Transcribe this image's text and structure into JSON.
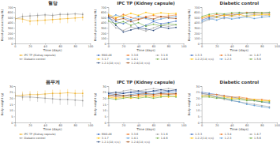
{
  "chart_data": [
    {
      "type": "line",
      "title": "혈당",
      "x_label": "Time (days)",
      "y_label": "Blood glucose (mg/dL)",
      "x": [
        0,
        10,
        20,
        30,
        40,
        50,
        60,
        70,
        80,
        90
      ],
      "xlim": [
        0,
        100
      ],
      "xticks": [
        0,
        20,
        40,
        60,
        80,
        100
      ],
      "ylim": [
        0,
        700
      ],
      "yticks": [
        0,
        100,
        200,
        300,
        400,
        500,
        600,
        700
      ],
      "grid": false,
      "legend": "bottom",
      "marker": "circle",
      "line_style": "solid",
      "series": [
        {
          "name": "IPC TP (Kidney capsule)",
          "color": "#f2b632",
          "values": [
            480,
            470,
            430,
            440,
            450,
            460,
            470,
            480,
            490,
            500
          ],
          "errors": [
            60,
            70,
            80,
            90,
            80,
            70,
            80,
            90,
            70,
            60
          ]
        },
        {
          "name": "Diabetic control",
          "color": "#9a9a9a",
          "values": [
            470,
            520,
            530,
            540,
            550,
            540,
            560,
            560,
            570,
            560
          ],
          "errors": [
            50,
            60,
            60,
            50,
            40,
            50,
            40,
            40,
            30,
            40
          ]
        }
      ]
    },
    {
      "type": "line",
      "title": "IPC TP (Kidney capsule)",
      "x_label": "Time (days)",
      "y_label": "Blood glucose (mg/dL)",
      "x": [
        0,
        10,
        20,
        30,
        40,
        50,
        60,
        70,
        80,
        90
      ],
      "xlim": [
        0,
        100
      ],
      "xticks": [
        0,
        20,
        40,
        60,
        80,
        100
      ],
      "ylim": [
        0,
        700
      ],
      "yticks": [
        0,
        100,
        200,
        300,
        400,
        500,
        600,
        700
      ],
      "grid": false,
      "legend": "bottom",
      "marker": "circle",
      "line_style": "solid",
      "series": [
        {
          "name": "M80-A6",
          "color": "#4472c4",
          "values": [
            500,
            420,
            380,
            450,
            300,
            350,
            420,
            380,
            400,
            430
          ]
        },
        {
          "name": "3-3-6",
          "color": "#ed7d31",
          "values": [
            520,
            480,
            560,
            500,
            470,
            520,
            540,
            510,
            530,
            550
          ]
        },
        {
          "name": "3-1-6",
          "color": "#a5a5a5",
          "values": [
            450,
            300,
            250,
            320,
            280,
            240,
            300,
            350,
            330,
            360
          ]
        },
        {
          "name": "3-1-7",
          "color": "#ffc000",
          "values": [
            560,
            500,
            530,
            580,
            540,
            600,
            560,
            590,
            570,
            580
          ]
        },
        {
          "name": "1-4-1",
          "color": "#5b9bd5",
          "values": [
            480,
            550,
            500,
            460,
            520,
            480,
            440,
            470,
            500,
            520
          ]
        },
        {
          "name": "1-4-6",
          "color": "#70ad47",
          "values": [
            430,
            380,
            420,
            350,
            400,
            330,
            370,
            340,
            380,
            360
          ]
        },
        {
          "name": "1-2-1(1차 이식)",
          "color": "#264478",
          "values": [
            510,
            350,
            220,
            260,
            300,
            280,
            250,
            320,
            290,
            310
          ]
        },
        {
          "name": "1-2-4(1차 이식)",
          "color": "#9e480e",
          "values": [
            540,
            450,
            480,
            420,
            460,
            500,
            470,
            520,
            490,
            480
          ]
        }
      ]
    },
    {
      "type": "line",
      "title": "Diabetic control",
      "x_label": "Time (days)",
      "y_label": "Blood glucose (mg/dL)",
      "x": [
        0,
        10,
        20,
        30,
        40,
        50,
        60,
        70,
        80,
        90
      ],
      "xlim": [
        0,
        100
      ],
      "xticks": [
        0,
        20,
        40,
        60,
        80,
        100
      ],
      "ylim": [
        0,
        700
      ],
      "yticks": [
        0,
        100,
        200,
        300,
        400,
        500,
        600,
        700
      ],
      "grid": false,
      "legend": "bottom",
      "marker": "circle",
      "line_style": "solid",
      "series": [
        {
          "name": "1-3-3",
          "color": "#4472c4",
          "values": [
            450,
            500,
            520,
            560,
            540,
            580,
            590,
            600,
            580,
            600
          ]
        },
        {
          "name": "1-3-4",
          "color": "#ed7d31",
          "values": [
            480,
            520,
            560,
            530,
            570,
            550,
            600,
            580,
            590,
            570
          ]
        },
        {
          "name": "1-4-7",
          "color": "#a5a5a5",
          "values": [
            400,
            460,
            500,
            480,
            520,
            500,
            540,
            560,
            530,
            550
          ]
        },
        {
          "name": "1-2-2(1차 이식)",
          "color": "#ffc000",
          "values": [
            500,
            540,
            510,
            550,
            530,
            560,
            520,
            540,
            560,
            550
          ]
        },
        {
          "name": "1-2-3",
          "color": "#5b9bd5",
          "values": [
            420,
            480,
            450,
            500,
            470,
            490,
            510,
            480,
            500,
            520
          ]
        },
        {
          "name": "1-5-6",
          "color": "#70ad47",
          "values": [
            520,
            560,
            580,
            570,
            590,
            600,
            580,
            600,
            590,
            600
          ]
        }
      ]
    },
    {
      "type": "line",
      "title": "몸무게",
      "x_label": "Time (days)",
      "y_label": "Body weight (g)",
      "x": [
        0,
        10,
        20,
        30,
        40,
        50,
        60,
        70,
        80,
        90
      ],
      "xlim": [
        0,
        100
      ],
      "xticks": [
        0,
        20,
        40,
        60,
        80,
        100
      ],
      "ylim": [
        0,
        30
      ],
      "yticks": [
        0,
        5,
        10,
        15,
        20,
        25,
        30
      ],
      "grid": false,
      "legend": "bottom",
      "marker": "circle",
      "line_style": "solid",
      "series": [
        {
          "name": "IPC TP (Kidney capsule)",
          "color": "#f2b632",
          "values": [
            22,
            22.5,
            23,
            23,
            23.5,
            24,
            24,
            24.5,
            24,
            24
          ],
          "errors": [
            3,
            3,
            3,
            3,
            3,
            3,
            3,
            3,
            3,
            3
          ]
        },
        {
          "name": "Diabetic control",
          "color": "#9a9a9a",
          "values": [
            22,
            21,
            21,
            20.5,
            20,
            19.5,
            19,
            19,
            18.5,
            18
          ],
          "errors": [
            3,
            3,
            3.5,
            3.5,
            4,
            4,
            4.5,
            4.5,
            5,
            5
          ]
        }
      ]
    },
    {
      "type": "line",
      "title": "IPC TP (Kidney capsule)",
      "x_label": "Time (days)",
      "y_label": "Body weight (g)",
      "x": [
        0,
        10,
        20,
        30,
        40,
        50,
        60,
        70,
        80,
        90
      ],
      "xlim": [
        0,
        100
      ],
      "xticks": [
        0,
        20,
        40,
        60,
        80,
        100
      ],
      "ylim": [
        0,
        30
      ],
      "yticks": [
        0,
        5,
        10,
        15,
        20,
        25,
        30
      ],
      "grid": false,
      "legend": "bottom",
      "marker": "circle",
      "line_style": "solid",
      "series": [
        {
          "name": "M80-A6",
          "color": "#4472c4",
          "values": [
            24,
            23,
            24,
            25,
            24,
            25,
            26,
            25,
            26,
            26
          ]
        },
        {
          "name": "3-3-6",
          "color": "#ed7d31",
          "values": [
            22,
            21,
            22,
            23,
            22,
            23,
            22,
            23,
            24,
            23
          ]
        },
        {
          "name": "3-1-6",
          "color": "#a5a5a5",
          "values": [
            25,
            24,
            26,
            27,
            26,
            27,
            28,
            27,
            28,
            27
          ]
        },
        {
          "name": "3-1-7",
          "color": "#ffc000",
          "values": [
            21,
            20,
            21,
            20,
            21,
            22,
            21,
            22,
            21,
            22
          ]
        },
        {
          "name": "1-4-1",
          "color": "#5b9bd5",
          "values": [
            23,
            22,
            22,
            23,
            24,
            23,
            24,
            24,
            25,
            24
          ]
        },
        {
          "name": "1-4-6",
          "color": "#70ad47",
          "values": [
            20,
            19,
            20,
            21,
            20,
            21,
            20,
            21,
            22,
            21
          ]
        },
        {
          "name": "1-2-1(1차 이식)",
          "color": "#264478",
          "values": [
            24,
            25,
            24,
            25,
            26,
            25,
            26,
            27,
            26,
            27
          ]
        },
        {
          "name": "1-2-4(1차 이식)",
          "color": "#9e480e",
          "values": [
            22,
            23,
            22,
            22,
            23,
            24,
            23,
            24,
            23,
            24
          ]
        }
      ]
    },
    {
      "type": "line",
      "title": "Diabetic control",
      "x_label": "Time (days)",
      "y_label": "Body weight (g)",
      "x": [
        0,
        10,
        20,
        30,
        40,
        50,
        60,
        70,
        80,
        90
      ],
      "xlim": [
        0,
        100
      ],
      "xticks": [
        0,
        20,
        40,
        60,
        80,
        100
      ],
      "ylim": [
        0,
        30
      ],
      "yticks": [
        0,
        5,
        10,
        15,
        20,
        25,
        30
      ],
      "grid": false,
      "legend": "bottom",
      "marker": "circle",
      "line_style": "solid",
      "series": [
        {
          "name": "1-3-3",
          "color": "#4472c4",
          "values": [
            25,
            24,
            23,
            22,
            21,
            20,
            19,
            18,
            17,
            16
          ]
        },
        {
          "name": "1-3-4",
          "color": "#ed7d31",
          "values": [
            24,
            23,
            23,
            22,
            21,
            21,
            20,
            19,
            19,
            18
          ]
        },
        {
          "name": "1-4-7",
          "color": "#a5a5a5",
          "values": [
            23,
            22,
            21,
            19,
            18,
            17,
            16,
            15,
            14,
            13
          ]
        },
        {
          "name": "1-2-2(1차 이식)",
          "color": "#ffc000",
          "values": [
            22,
            22,
            21,
            21,
            20,
            20,
            19,
            19,
            18,
            18
          ]
        },
        {
          "name": "1-2-3",
          "color": "#5b9bd5",
          "values": [
            24,
            23,
            21,
            20,
            18,
            17,
            15,
            14,
            13,
            12
          ]
        },
        {
          "name": "1-5-6",
          "color": "#70ad47",
          "values": [
            21,
            21,
            20,
            20,
            19,
            19,
            18,
            18,
            17,
            17
          ]
        }
      ]
    }
  ]
}
